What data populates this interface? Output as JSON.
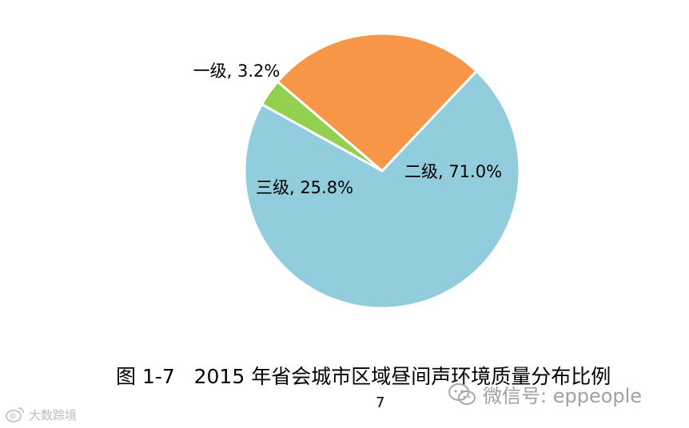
{
  "chart_data": {
    "type": "pie",
    "title": "图 1-7   2015 年省会城市区域昼间声环境质量分布比例",
    "slices": [
      {
        "name": "二级",
        "value": 71.0,
        "label": "二级, 71.0%",
        "color": "#92cddd"
      },
      {
        "name": "三级",
        "value": 25.8,
        "label": "三级, 25.8%",
        "color": "#f79646"
      },
      {
        "name": "一级",
        "value": 3.2,
        "label": "一级, 3.2%",
        "color": "#92d050"
      }
    ],
    "start_angle_deg": -151,
    "direction": "counterclockwise",
    "labels_inside": [
      "二级",
      "三级"
    ],
    "label_outside": "一级"
  },
  "page": {
    "number": "7"
  },
  "watermarks": {
    "wechat_icon": "wechat-icon",
    "wechat_text": "微信号: eppeople",
    "corner_logo_icon": "weibo-logo-icon",
    "corner_text": "大数踪境"
  }
}
